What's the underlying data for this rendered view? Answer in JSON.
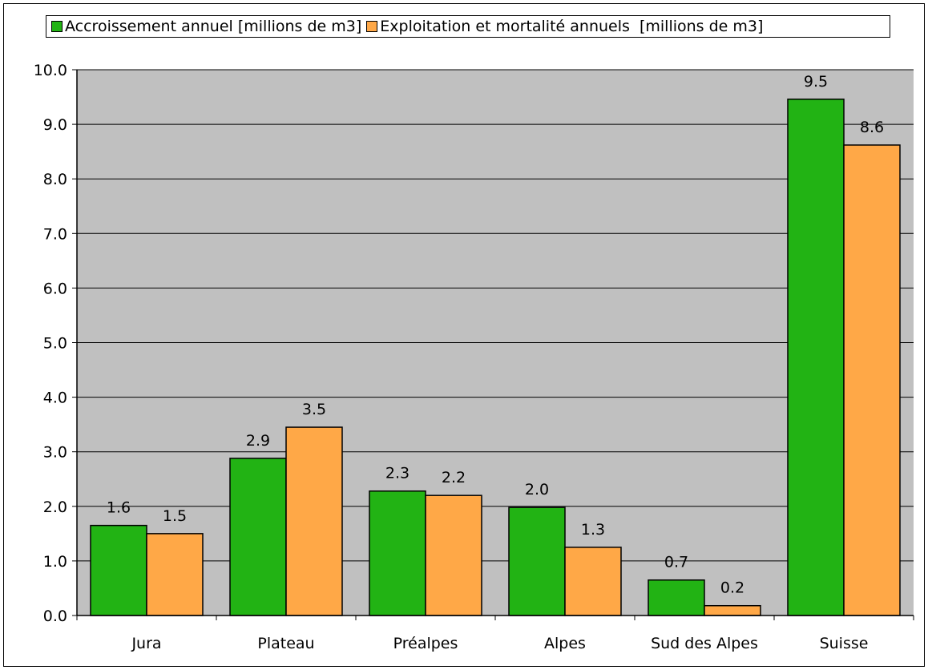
{
  "chart_data": {
    "type": "bar",
    "categories": [
      "Jura",
      "Plateau",
      "Préalpes",
      "Alpes",
      "Sud des Alpes",
      "Suisse"
    ],
    "series": [
      {
        "name": "Accroissement annuel [millions de m3]",
        "values": [
          1.65,
          2.88,
          2.28,
          1.98,
          0.65,
          9.46
        ],
        "labels": [
          "1.6",
          "2.9",
          "2.3",
          "2.0",
          "0.7",
          "9.5"
        ],
        "color": "#22b314"
      },
      {
        "name": "Exploitation et mortalité annuels  [millions de m3]",
        "values": [
          1.5,
          3.45,
          2.2,
          1.25,
          0.18,
          8.62
        ],
        "labels": [
          "1.5",
          "3.5",
          "2.2",
          "1.3",
          "0.2",
          "8.6"
        ],
        "color": "#ffa847"
      }
    ],
    "ylim": [
      0,
      10
    ],
    "yticks": [
      "0.0",
      "1.0",
      "2.0",
      "3.0",
      "4.0",
      "5.0",
      "6.0",
      "7.0",
      "8.0",
      "9.0",
      "10.0"
    ],
    "grid": true,
    "legend_position": "top",
    "plot_background": "#c0c0c0"
  }
}
